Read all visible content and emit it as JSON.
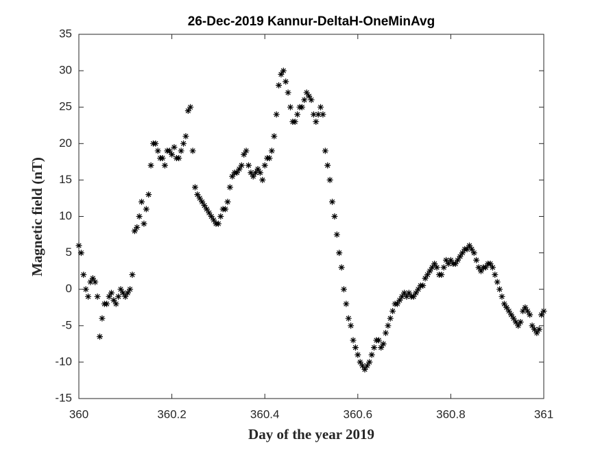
{
  "chart_data": {
    "type": "scatter",
    "title": "26-Dec-2019 Kannur-DeltaH-OneMinAvg",
    "x_label": "Day of the year 2019",
    "y_label": "Magnetic field (nT)",
    "marker": "asterisk",
    "color": "#000000",
    "xlim": [
      360,
      361
    ],
    "xticks": [
      360,
      360.2,
      360.4,
      360.6,
      360.8,
      361
    ],
    "ylim": [
      -15,
      35
    ],
    "yticks": [
      -15,
      -10,
      -5,
      0,
      5,
      10,
      15,
      20,
      25,
      30,
      35
    ],
    "x": [
      360,
      360.005,
      360.01,
      360.015,
      360.02,
      360.025,
      360.03,
      360.035,
      360.04,
      360.045,
      360.05,
      360.055,
      360.06,
      360.065,
      360.07,
      360.075,
      360.08,
      360.085,
      360.09,
      360.095,
      360.1,
      360.105,
      360.11,
      360.115,
      360.12,
      360.125,
      360.13,
      360.135,
      360.14,
      360.145,
      360.15,
      360.155,
      360.16,
      360.165,
      360.17,
      360.175,
      360.18,
      360.185,
      360.19,
      360.195,
      360.2,
      360.205,
      360.21,
      360.215,
      360.22,
      360.225,
      360.23,
      360.235,
      360.24,
      360.245,
      360.25,
      360.255,
      360.26,
      360.265,
      360.27,
      360.275,
      360.28,
      360.285,
      360.29,
      360.295,
      360.3,
      360.305,
      360.31,
      360.315,
      360.32,
      360.325,
      360.33,
      360.335,
      360.34,
      360.345,
      360.35,
      360.355,
      360.36,
      360.365,
      360.37,
      360.375,
      360.38,
      360.385,
      360.39,
      360.395,
      360.4,
      360.405,
      360.41,
      360.415,
      360.42,
      360.425,
      360.43,
      360.435,
      360.44,
      360.445,
      360.45,
      360.455,
      360.46,
      360.465,
      360.47,
      360.475,
      360.48,
      360.485,
      360.49,
      360.495,
      360.5,
      360.505,
      360.51,
      360.515,
      360.52,
      360.525,
      360.53,
      360.535,
      360.54,
      360.545,
      360.55,
      360.555,
      360.56,
      360.565,
      360.57,
      360.575,
      360.58,
      360.585,
      360.59,
      360.595,
      360.6,
      360.605,
      360.61,
      360.615,
      360.62,
      360.625,
      360.63,
      360.635,
      360.64,
      360.645,
      360.65,
      360.655,
      360.66,
      360.665,
      360.67,
      360.675,
      360.68,
      360.685,
      360.69,
      360.695,
      360.7,
      360.705,
      360.71,
      360.715,
      360.72,
      360.725,
      360.73,
      360.735,
      360.74,
      360.745,
      360.75,
      360.755,
      360.76,
      360.765,
      360.77,
      360.775,
      360.78,
      360.785,
      360.79,
      360.795,
      360.8,
      360.805,
      360.81,
      360.815,
      360.82,
      360.825,
      360.83,
      360.835,
      360.84,
      360.845,
      360.85,
      360.855,
      360.86,
      360.865,
      360.87,
      360.875,
      360.88,
      360.885,
      360.89,
      360.895,
      360.9,
      360.905,
      360.91,
      360.915,
      360.92,
      360.925,
      360.93,
      360.935,
      360.94,
      360.945,
      360.95,
      360.955,
      360.96,
      360.965,
      360.97,
      360.975,
      360.98,
      360.985,
      360.99,
      360.995,
      361
    ],
    "values": [
      6,
      5,
      2,
      0,
      -1,
      1,
      1.5,
      1,
      -1,
      -6.5,
      -4,
      -2,
      -2,
      -1,
      -0.5,
      -1.5,
      -2,
      -1,
      0,
      -0.5,
      -1,
      -0.5,
      0,
      2,
      8,
      8.5,
      10,
      12,
      9,
      11,
      13,
      17,
      20,
      20,
      19,
      18,
      18,
      17,
      19,
      19,
      18.5,
      19.5,
      18,
      18,
      19,
      20,
      21,
      24.5,
      25,
      19,
      14,
      13,
      12.5,
      12,
      11.5,
      11,
      10.5,
      10,
      9.5,
      9,
      9,
      10,
      11,
      11,
      12,
      14,
      15.5,
      16,
      16,
      16.5,
      17,
      18.5,
      19,
      17,
      16,
      15.5,
      16,
      16.5,
      16,
      15,
      17,
      18,
      18,
      19,
      21,
      24,
      28,
      29.5,
      30,
      28.5,
      27,
      25,
      23,
      23,
      24,
      25,
      25,
      26,
      27,
      26.5,
      26,
      24,
      23,
      24,
      25,
      24,
      19,
      17,
      15,
      12,
      10,
      7.5,
      5,
      3,
      0,
      -2,
      -4,
      -5,
      -7,
      -8,
      -9,
      -10,
      -10.5,
      -11,
      -10.5,
      -10,
      -9,
      -8,
      -7,
      -7,
      -8,
      -7.5,
      -6,
      -5,
      -4,
      -3,
      -2,
      -2,
      -1.5,
      -1,
      -0.5,
      -1,
      -0.5,
      -1,
      -1,
      -0.5,
      0,
      0.5,
      0.5,
      1.5,
      2,
      2.5,
      3,
      3.5,
      3,
      2,
      2,
      3,
      4,
      3.5,
      4,
      3.5,
      3.5,
      4,
      4.5,
      5,
      5.5,
      5.5,
      6,
      5.5,
      5,
      4,
      3,
      2.5,
      3,
      3,
      3.5,
      3.5,
      3,
      2,
      1,
      0,
      -1,
      -2,
      -2.5,
      -3,
      -3.5,
      -4,
      -4.5,
      -5,
      -4.5,
      -3,
      -2.5,
      -3,
      -3.5,
      -5,
      -5.5,
      -6,
      -5.5,
      -3.5,
      -3
    ]
  }
}
